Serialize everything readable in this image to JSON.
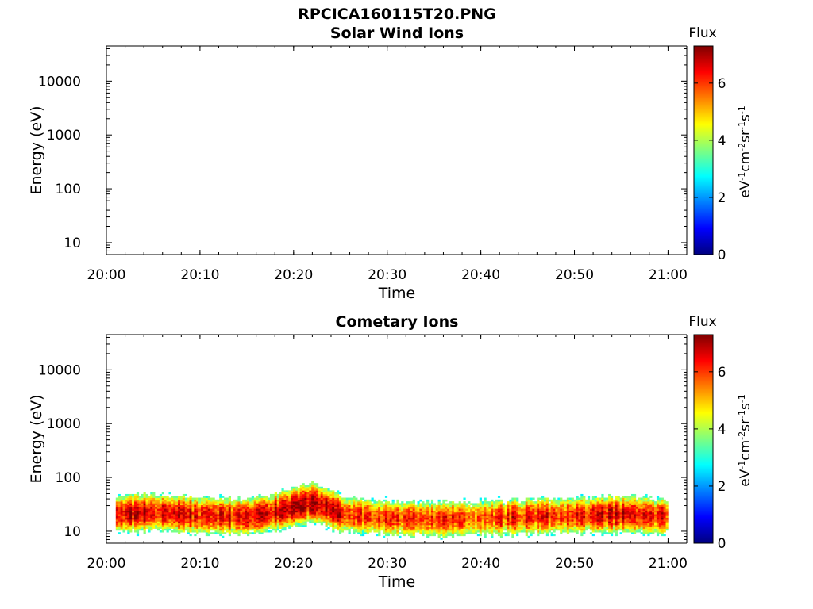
{
  "figure": {
    "title": "RPCICA160115T20.PNG"
  },
  "colors": {
    "colormap": [
      "#00007f",
      "#0000ff",
      "#007fff",
      "#00ffff",
      "#7fff7f",
      "#ffff00",
      "#ff7f00",
      "#ff0000",
      "#7f0000"
    ],
    "axes": "#000000",
    "background": "#ffffff"
  },
  "chart_data": [
    {
      "type": "heatmap",
      "title": "Solar Wind Ions",
      "xlabel": "Time",
      "ylabel": "Energy (eV)",
      "y_scale": "log",
      "ylim": [
        6,
        45000
      ],
      "xlim": [
        "20:00",
        "21:02"
      ],
      "x_ticks": [
        "20:00",
        "20:10",
        "20:20",
        "20:30",
        "20:40",
        "20:50",
        "21:00"
      ],
      "y_ticks": [
        "10",
        "100",
        "1000",
        "10000"
      ],
      "y_tick_values": [
        10,
        100,
        1000,
        10000
      ],
      "colorbar": {
        "title": "Flux",
        "label": "eV-1cm-2sr-1s-1",
        "range": [
          0,
          7.3
        ],
        "ticks": [
          "0",
          "2",
          "4",
          "6"
        ],
        "tick_values": [
          0,
          2,
          4,
          6
        ]
      },
      "data": "no flux recorded"
    },
    {
      "type": "heatmap",
      "title": "Cometary Ions",
      "xlabel": "Time",
      "ylabel": "Energy (eV)",
      "y_scale": "log",
      "ylim": [
        6,
        45000
      ],
      "xlim": [
        "20:00",
        "21:02"
      ],
      "x_ticks": [
        "20:00",
        "20:10",
        "20:20",
        "20:30",
        "20:40",
        "20:50",
        "21:00"
      ],
      "y_ticks": [
        "10",
        "100",
        "1000",
        "10000"
      ],
      "y_tick_values": [
        10,
        100,
        1000,
        10000
      ],
      "colorbar": {
        "title": "Flux",
        "label": "eV-1cm-2sr-1s-1",
        "range": [
          0,
          7.3
        ],
        "ticks": [
          "0",
          "2",
          "4",
          "6"
        ],
        "tick_values": [
          0,
          2,
          4,
          6
        ]
      },
      "data_extent": {
        "time_start": "20:01",
        "time_end": "21:00",
        "energy_min": 6,
        "energy_max": 85
      },
      "flux_profile": [
        {
          "time": "20:01",
          "peak_energy": 20,
          "peak_flux": 6.3
        },
        {
          "time": "20:05",
          "peak_energy": 22,
          "peak_flux": 6.6
        },
        {
          "time": "20:10",
          "peak_energy": 19,
          "peak_flux": 6.4
        },
        {
          "time": "20:15",
          "peak_energy": 18,
          "peak_flux": 6.2
        },
        {
          "time": "20:18",
          "peak_energy": 22,
          "peak_flux": 6.6
        },
        {
          "time": "20:22",
          "peak_energy": 33,
          "peak_flux": 6.9
        },
        {
          "time": "20:25",
          "peak_energy": 20,
          "peak_flux": 6.5
        },
        {
          "time": "20:30",
          "peak_energy": 17,
          "peak_flux": 6.1
        },
        {
          "time": "20:35",
          "peak_energy": 16,
          "peak_flux": 5.9
        },
        {
          "time": "20:40",
          "peak_energy": 17,
          "peak_flux": 6.0
        },
        {
          "time": "20:45",
          "peak_energy": 18,
          "peak_flux": 6.2
        },
        {
          "time": "20:50",
          "peak_energy": 19,
          "peak_flux": 6.3
        },
        {
          "time": "20:55",
          "peak_energy": 20,
          "peak_flux": 6.5
        },
        {
          "time": "21:00",
          "peak_energy": 18,
          "peak_flux": 6.3
        }
      ]
    }
  ]
}
